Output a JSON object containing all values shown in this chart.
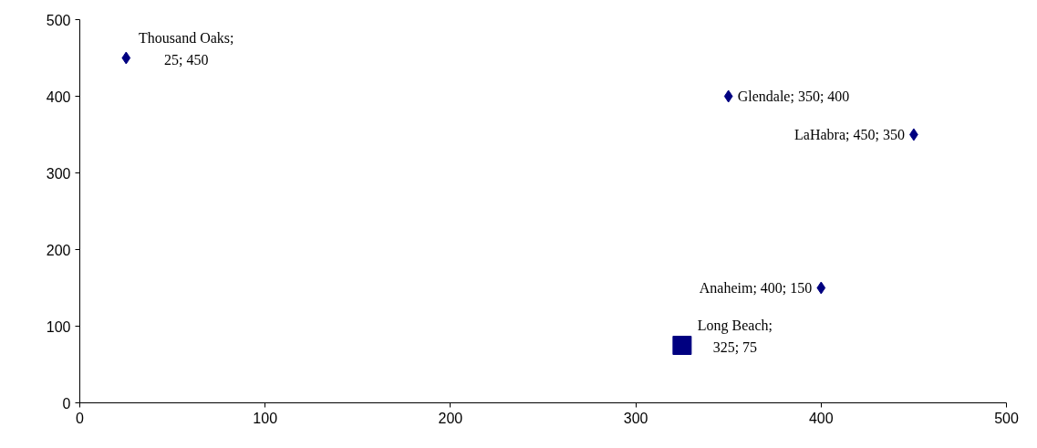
{
  "chart_data": {
    "type": "scatter",
    "xlim": [
      0,
      500
    ],
    "ylim": [
      0,
      500
    ],
    "xticks": [
      0,
      100,
      200,
      300,
      400,
      500
    ],
    "yticks": [
      0,
      100,
      200,
      300,
      400,
      500
    ],
    "grid": false,
    "series": [
      {
        "color": "#000080",
        "marker": "diamond",
        "x": [
          25,
          350,
          450,
          400
        ],
        "values": [
          450,
          400,
          350,
          150
        ],
        "value_labels": [
          "Thousand Oaks; 25; 450",
          "Glendale; 350; 400",
          "LaHabra; 450; 350",
          "Anaheim; 400; 150"
        ]
      },
      {
        "color": "#000080",
        "marker": "square",
        "x": [
          325
        ],
        "values": [
          75
        ],
        "value_labels": [
          "Long Beach; 325; 75"
        ]
      }
    ]
  }
}
